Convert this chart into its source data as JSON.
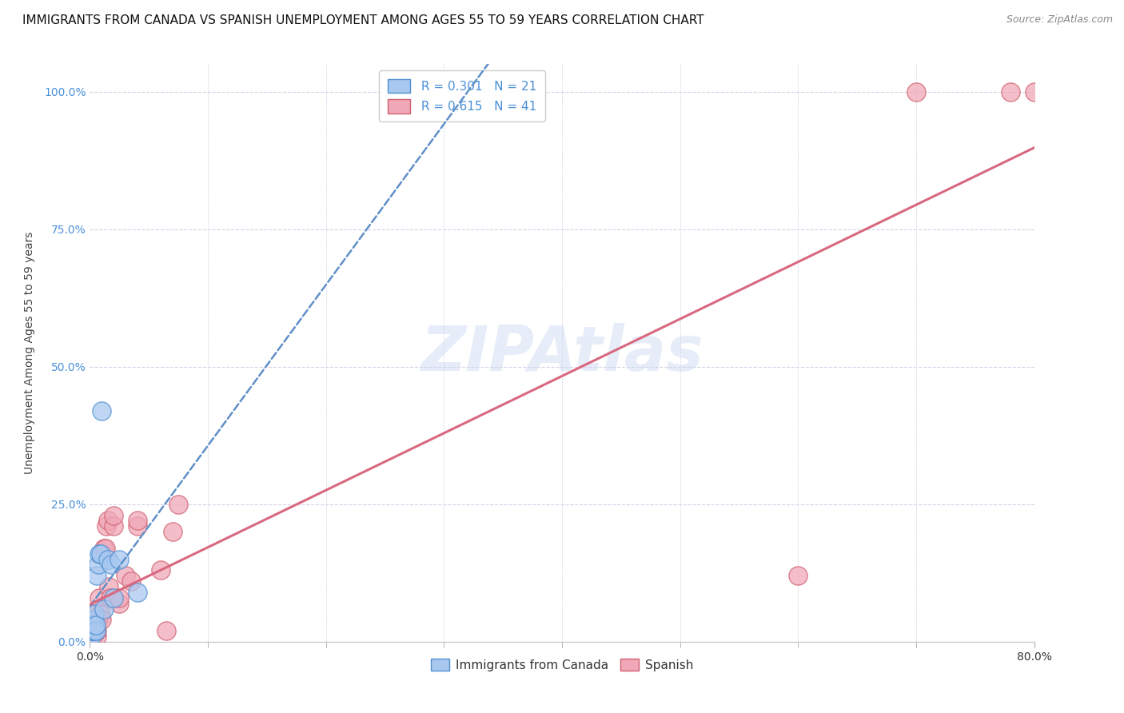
{
  "title": "IMMIGRANTS FROM CANADA VS SPANISH UNEMPLOYMENT AMONG AGES 55 TO 59 YEARS CORRELATION CHART",
  "source": "Source: ZipAtlas.com",
  "ylabel": "Unemployment Among Ages 55 to 59 years",
  "y_tick_labels": [
    "0.0%",
    "25.0%",
    "50.0%",
    "75.0%",
    "100.0%"
  ],
  "y_tick_values": [
    0,
    0.25,
    0.5,
    0.75,
    1.0
  ],
  "x_tick_labels_show": [
    "0.0%",
    "80.0%"
  ],
  "x_tick_show": [
    0.0,
    0.8
  ],
  "xlim": [
    0,
    0.8
  ],
  "ylim": [
    0,
    1.05
  ],
  "watermark": "ZIPAtlas",
  "legend_label1": "Immigrants from Canada",
  "legend_label2": "Spanish",
  "r1": "0.301",
  "n1": "21",
  "r2": "0.615",
  "n2": "41",
  "color_blue_fill": "#A8C8F0",
  "color_blue_edge": "#5090D0",
  "color_pink_fill": "#F0A8B8",
  "color_pink_edge": "#D06070",
  "color_blue_line": "#6090C8",
  "color_pink_line": "#D86880",
  "background_color": "#FFFFFF",
  "grid_color": "#D8D0E8",
  "blue_scatter_x": [
    0.001,
    0.002,
    0.002,
    0.003,
    0.003,
    0.003,
    0.004,
    0.004,
    0.005,
    0.005,
    0.006,
    0.007,
    0.008,
    0.009,
    0.01,
    0.012,
    0.015,
    0.018,
    0.02,
    0.025,
    0.04
  ],
  "blue_scatter_y": [
    0.01,
    0.02,
    0.02,
    0.02,
    0.03,
    0.04,
    0.03,
    0.05,
    0.02,
    0.03,
    0.12,
    0.14,
    0.16,
    0.16,
    0.42,
    0.06,
    0.15,
    0.14,
    0.08,
    0.15,
    0.09
  ],
  "pink_scatter_x": [
    0.001,
    0.001,
    0.002,
    0.002,
    0.002,
    0.003,
    0.003,
    0.003,
    0.004,
    0.004,
    0.005,
    0.005,
    0.006,
    0.006,
    0.007,
    0.008,
    0.008,
    0.009,
    0.01,
    0.012,
    0.013,
    0.014,
    0.015,
    0.016,
    0.017,
    0.02,
    0.02,
    0.025,
    0.025,
    0.03,
    0.035,
    0.04,
    0.04,
    0.06,
    0.065,
    0.07,
    0.075,
    0.6,
    0.7,
    0.78,
    0.8
  ],
  "pink_scatter_y": [
    0.01,
    0.02,
    0.01,
    0.02,
    0.03,
    0.01,
    0.02,
    0.03,
    0.02,
    0.04,
    0.02,
    0.03,
    0.01,
    0.02,
    0.04,
    0.06,
    0.08,
    0.05,
    0.04,
    0.17,
    0.17,
    0.21,
    0.22,
    0.1,
    0.08,
    0.21,
    0.23,
    0.07,
    0.08,
    0.12,
    0.11,
    0.21,
    0.22,
    0.13,
    0.02,
    0.2,
    0.25,
    0.12,
    1.0,
    1.0,
    1.0
  ],
  "title_fontsize": 11,
  "axis_label_fontsize": 10,
  "tick_fontsize": 10,
  "legend_fontsize": 11,
  "source_fontsize": 9
}
